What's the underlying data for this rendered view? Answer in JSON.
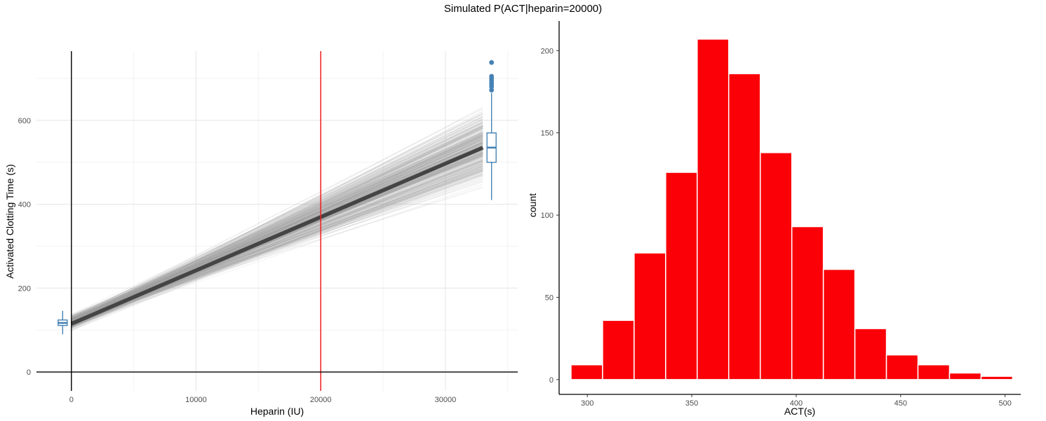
{
  "figure": {
    "title": "Simulated P(ACT|heparin=20000)"
  },
  "chart_data": [
    {
      "type": "line",
      "xlabel": "Heparin (IU)",
      "ylabel": "Activated Clotting Time (s)",
      "xlim": [
        -2800,
        35800
      ],
      "ylim": [
        -45,
        765
      ],
      "x_ticks": [
        0,
        10000,
        20000,
        30000
      ],
      "y_ticks": [
        0,
        200,
        400,
        600
      ],
      "grid": true,
      "mean_line": {
        "x": [
          0,
          33000
        ],
        "y": [
          115,
          535
        ]
      },
      "simulated_lines": {
        "x": [
          0,
          33000
        ],
        "intercept_range": [
          92,
          145
        ],
        "end_range": [
          415,
          705
        ]
      },
      "reference_line_x": 20000,
      "reference_line_color": "#ee1c1c",
      "series_color": "#4682b4",
      "boxplots": [
        {
          "x": -700,
          "min": 90,
          "q1": 111,
          "median": 117,
          "q3": 124,
          "max": 146,
          "outliers": []
        },
        {
          "x": 33700,
          "min": 410,
          "q1": 500,
          "median": 535,
          "q3": 570,
          "max": 665,
          "outliers": [
            672,
            680,
            685,
            690,
            695,
            700,
            705,
            738
          ]
        }
      ]
    },
    {
      "type": "bar",
      "xlabel": "ACT(s)",
      "ylabel": "count",
      "xlim": [
        286.5,
        507.5
      ],
      "ylim": [
        -9,
        218
      ],
      "x_ticks": [
        300,
        350,
        400,
        450,
        500
      ],
      "y_ticks": [
        0,
        50,
        100,
        150,
        200
      ],
      "grid": false,
      "bar_color": "#fb0007",
      "bin_edges": [
        292.2,
        307.3,
        322.4,
        337.5,
        352.6,
        367.7,
        382.8,
        397.9,
        413.0,
        428.1,
        443.2,
        458.3,
        473.4,
        488.5,
        503.6
      ],
      "values": [
        9,
        36,
        77,
        126,
        207,
        186,
        138,
        93,
        67,
        31,
        15,
        9,
        4,
        2
      ]
    }
  ]
}
